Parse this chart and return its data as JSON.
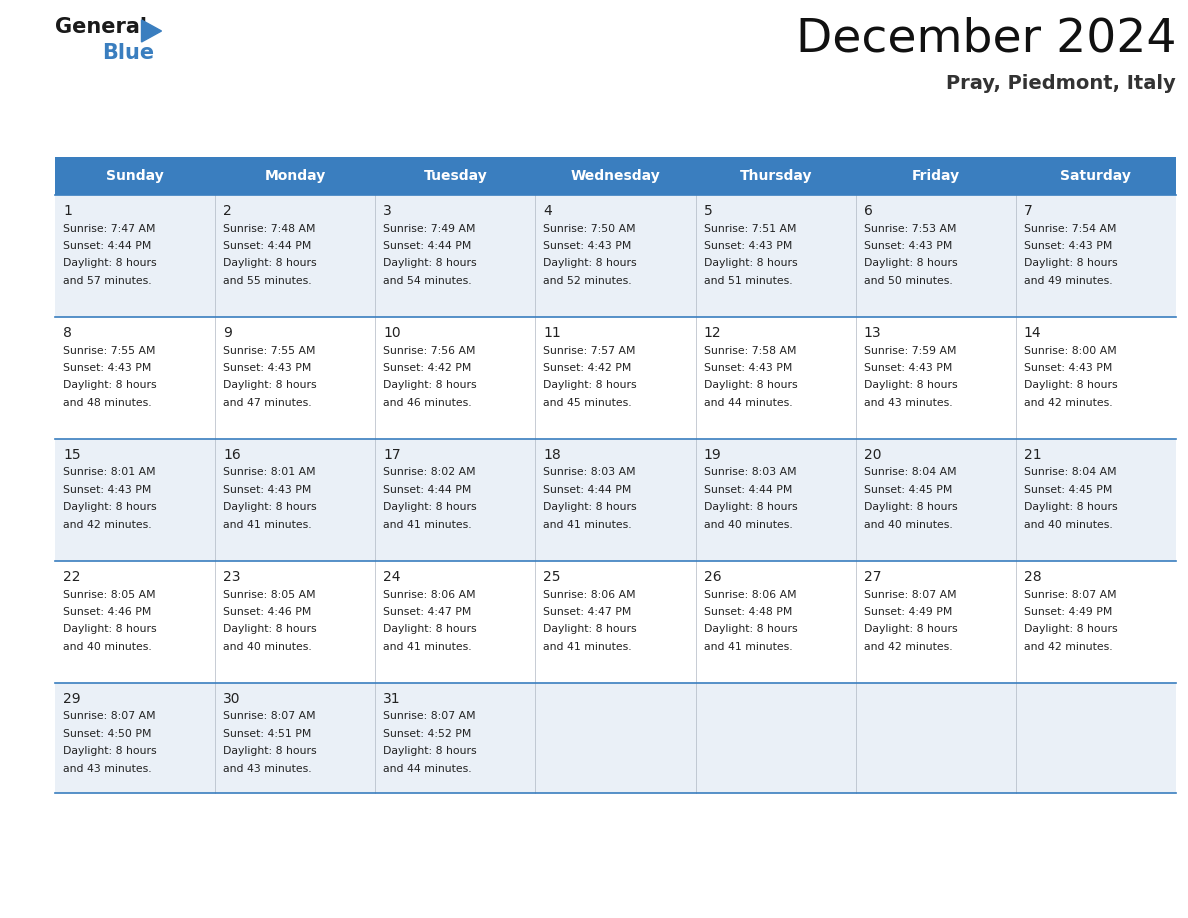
{
  "title": "December 2024",
  "subtitle": "Pray, Piedmont, Italy",
  "header_color": "#3a7ebf",
  "header_text_color": "#ffffff",
  "weekdays": [
    "Sunday",
    "Monday",
    "Tuesday",
    "Wednesday",
    "Thursday",
    "Friday",
    "Saturday"
  ],
  "bg_color": "#ffffff",
  "cell_bg_even": "#eaf0f7",
  "cell_bg_odd": "#ffffff",
  "row_separator_color": "#3a7ebf",
  "text_color": "#222222",
  "days": [
    {
      "day": 1,
      "col": 0,
      "row": 0,
      "sunrise": "7:47 AM",
      "sunset": "4:44 PM",
      "daylight_min": 57
    },
    {
      "day": 2,
      "col": 1,
      "row": 0,
      "sunrise": "7:48 AM",
      "sunset": "4:44 PM",
      "daylight_min": 55
    },
    {
      "day": 3,
      "col": 2,
      "row": 0,
      "sunrise": "7:49 AM",
      "sunset": "4:44 PM",
      "daylight_min": 54
    },
    {
      "day": 4,
      "col": 3,
      "row": 0,
      "sunrise": "7:50 AM",
      "sunset": "4:43 PM",
      "daylight_min": 52
    },
    {
      "day": 5,
      "col": 4,
      "row": 0,
      "sunrise": "7:51 AM",
      "sunset": "4:43 PM",
      "daylight_min": 51
    },
    {
      "day": 6,
      "col": 5,
      "row": 0,
      "sunrise": "7:53 AM",
      "sunset": "4:43 PM",
      "daylight_min": 50
    },
    {
      "day": 7,
      "col": 6,
      "row": 0,
      "sunrise": "7:54 AM",
      "sunset": "4:43 PM",
      "daylight_min": 49
    },
    {
      "day": 8,
      "col": 0,
      "row": 1,
      "sunrise": "7:55 AM",
      "sunset": "4:43 PM",
      "daylight_min": 48
    },
    {
      "day": 9,
      "col": 1,
      "row": 1,
      "sunrise": "7:55 AM",
      "sunset": "4:43 PM",
      "daylight_min": 47
    },
    {
      "day": 10,
      "col": 2,
      "row": 1,
      "sunrise": "7:56 AM",
      "sunset": "4:42 PM",
      "daylight_min": 46
    },
    {
      "day": 11,
      "col": 3,
      "row": 1,
      "sunrise": "7:57 AM",
      "sunset": "4:42 PM",
      "daylight_min": 45
    },
    {
      "day": 12,
      "col": 4,
      "row": 1,
      "sunrise": "7:58 AM",
      "sunset": "4:43 PM",
      "daylight_min": 44
    },
    {
      "day": 13,
      "col": 5,
      "row": 1,
      "sunrise": "7:59 AM",
      "sunset": "4:43 PM",
      "daylight_min": 43
    },
    {
      "day": 14,
      "col": 6,
      "row": 1,
      "sunrise": "8:00 AM",
      "sunset": "4:43 PM",
      "daylight_min": 42
    },
    {
      "day": 15,
      "col": 0,
      "row": 2,
      "sunrise": "8:01 AM",
      "sunset": "4:43 PM",
      "daylight_min": 42
    },
    {
      "day": 16,
      "col": 1,
      "row": 2,
      "sunrise": "8:01 AM",
      "sunset": "4:43 PM",
      "daylight_min": 41
    },
    {
      "day": 17,
      "col": 2,
      "row": 2,
      "sunrise": "8:02 AM",
      "sunset": "4:44 PM",
      "daylight_min": 41
    },
    {
      "day": 18,
      "col": 3,
      "row": 2,
      "sunrise": "8:03 AM",
      "sunset": "4:44 PM",
      "daylight_min": 41
    },
    {
      "day": 19,
      "col": 4,
      "row": 2,
      "sunrise": "8:03 AM",
      "sunset": "4:44 PM",
      "daylight_min": 40
    },
    {
      "day": 20,
      "col": 5,
      "row": 2,
      "sunrise": "8:04 AM",
      "sunset": "4:45 PM",
      "daylight_min": 40
    },
    {
      "day": 21,
      "col": 6,
      "row": 2,
      "sunrise": "8:04 AM",
      "sunset": "4:45 PM",
      "daylight_min": 40
    },
    {
      "day": 22,
      "col": 0,
      "row": 3,
      "sunrise": "8:05 AM",
      "sunset": "4:46 PM",
      "daylight_min": 40
    },
    {
      "day": 23,
      "col": 1,
      "row": 3,
      "sunrise": "8:05 AM",
      "sunset": "4:46 PM",
      "daylight_min": 40
    },
    {
      "day": 24,
      "col": 2,
      "row": 3,
      "sunrise": "8:06 AM",
      "sunset": "4:47 PM",
      "daylight_min": 41
    },
    {
      "day": 25,
      "col": 3,
      "row": 3,
      "sunrise": "8:06 AM",
      "sunset": "4:47 PM",
      "daylight_min": 41
    },
    {
      "day": 26,
      "col": 4,
      "row": 3,
      "sunrise": "8:06 AM",
      "sunset": "4:48 PM",
      "daylight_min": 41
    },
    {
      "day": 27,
      "col": 5,
      "row": 3,
      "sunrise": "8:07 AM",
      "sunset": "4:49 PM",
      "daylight_min": 42
    },
    {
      "day": 28,
      "col": 6,
      "row": 3,
      "sunrise": "8:07 AM",
      "sunset": "4:49 PM",
      "daylight_min": 42
    },
    {
      "day": 29,
      "col": 0,
      "row": 4,
      "sunrise": "8:07 AM",
      "sunset": "4:50 PM",
      "daylight_min": 43
    },
    {
      "day": 30,
      "col": 1,
      "row": 4,
      "sunrise": "8:07 AM",
      "sunset": "4:51 PM",
      "daylight_min": 43
    },
    {
      "day": 31,
      "col": 2,
      "row": 4,
      "sunrise": "8:07 AM",
      "sunset": "4:52 PM",
      "daylight_min": 44
    }
  ],
  "logo_color_general": "#1a1a1a",
  "logo_color_blue": "#3a7ebf",
  "logo_triangle_color": "#3a7ebf",
  "fig_width": 11.88,
  "fig_height": 9.18,
  "dpi": 100
}
